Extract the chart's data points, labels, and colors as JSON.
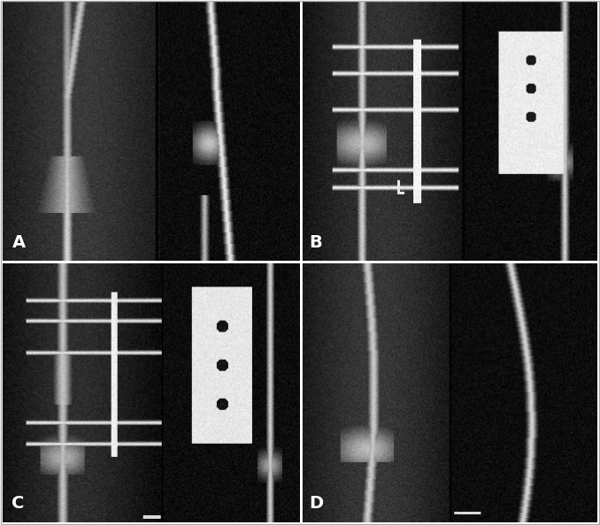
{
  "figure_width": 6.78,
  "figure_height": 5.94,
  "dpi": 100,
  "background_color": "#ffffff",
  "border_color": "#cccccc",
  "label_color": "#ffffff",
  "label_fontsize": 14,
  "label_fontweight": "bold",
  "panels": [
    "A",
    "B",
    "C",
    "D"
  ],
  "grid_rows": 2,
  "grid_cols": 2,
  "divider_color": "#ffffff",
  "divider_linewidth": 3,
  "panel_bg": "#404040",
  "outer_border_color": "#aaaaaa",
  "outer_border_linewidth": 1
}
